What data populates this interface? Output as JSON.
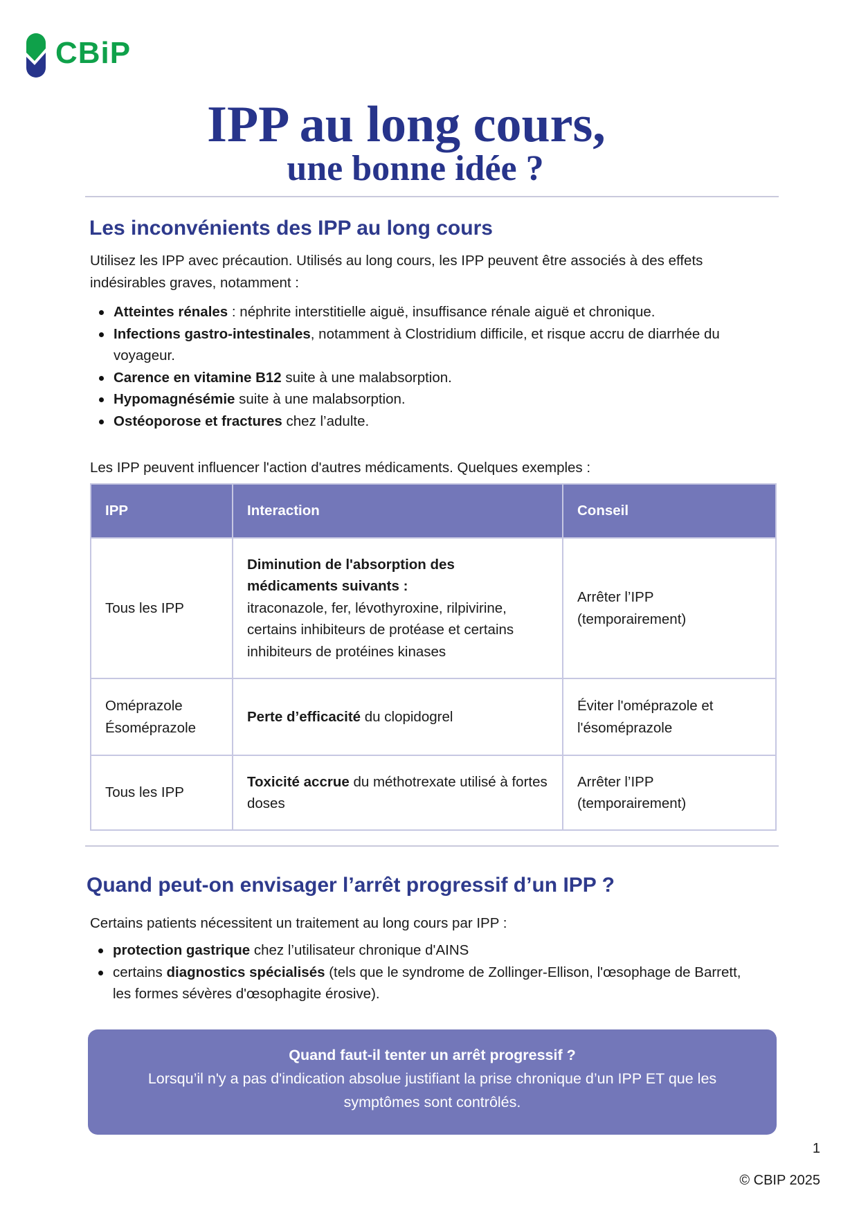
{
  "logo": {
    "text": "CBiP",
    "colors": {
      "green": "#0fa14a",
      "navy": "#27348b"
    }
  },
  "title": {
    "line1": "IPP au long cours,",
    "line2": "une bonne idée ?"
  },
  "section1": {
    "heading": "Les inconvénients des IPP au long cours",
    "intro": "Utilisez les IPP avec précaution. Utilisés au long cours, les IPP peuvent être associés à des effets indésirables graves, notamment :",
    "bullets": [
      {
        "bold": "Atteintes rénales",
        "text": " : néphrite interstitielle aiguë, insuffisance rénale aiguë et chronique."
      },
      {
        "bold": "Infections gastro-intestinales",
        "text": ", notamment à Clostridium difficile, et risque accru de diarrhée du voyageur."
      },
      {
        "bold": "Carence en vitamine B12",
        "text": " suite à une malabsorption."
      },
      {
        "bold": "Hypomagnésémie",
        "text": " suite à une malabsorption."
      },
      {
        "bold": "Ostéoporose et fractures",
        "text": " chez l’adulte."
      }
    ],
    "table_intro": "Les IPP peuvent influencer l'action d'autres médicaments. Quelques exemples :"
  },
  "table": {
    "headers": [
      "IPP",
      "Interaction",
      "Conseil"
    ],
    "rows": [
      {
        "ipp": "Tous les IPP",
        "bold": "Diminution de l'absorption des médicaments suivants :",
        "text": "itraconazole, fer, lévothyroxine, rilpivirine, certains inhibiteurs de protéase et certains inhibiteurs de protéines kinases",
        "advice": "Arrêter l’IPP (temporairement)"
      },
      {
        "ipp": "Oméprazole Ésoméprazole",
        "bold": "Perte d’efficacité",
        "text": " du clopidogrel",
        "advice": "Éviter l'oméprazole et l'ésoméprazole"
      },
      {
        "ipp": "Tous les IPP",
        "bold": "Toxicité accrue",
        "text": " du méthotrexate utilisé à fortes doses",
        "advice": "Arrêter l’IPP (temporairement)"
      }
    ]
  },
  "section2": {
    "heading": "Quand peut-on envisager l’arrêt progressif d’un IPP ?",
    "intro": "Certains patients nécessitent un traitement au long cours par IPP :",
    "bullet1": {
      "bold": "protection gastrique",
      "text": " chez l’utilisateur chronique d'AINS"
    },
    "bullet2": {
      "pre": "certains ",
      "bold": "diagnostics spécialisés",
      "text": " (tels que le syndrome de Zollinger-Ellison, l'œsophage de Barrett, les formes sévères d'œsophagite érosive)."
    }
  },
  "callout": {
    "title": "Quand faut-il tenter un arrêt progressif ?",
    "text": "Lorsqu’il n'y a pas d'indication absolue justifiant la prise chronique d’un IPP ET que les symptômes sont contrôlés."
  },
  "footer": {
    "page": "1",
    "copyright": "© CBIP 2025"
  }
}
